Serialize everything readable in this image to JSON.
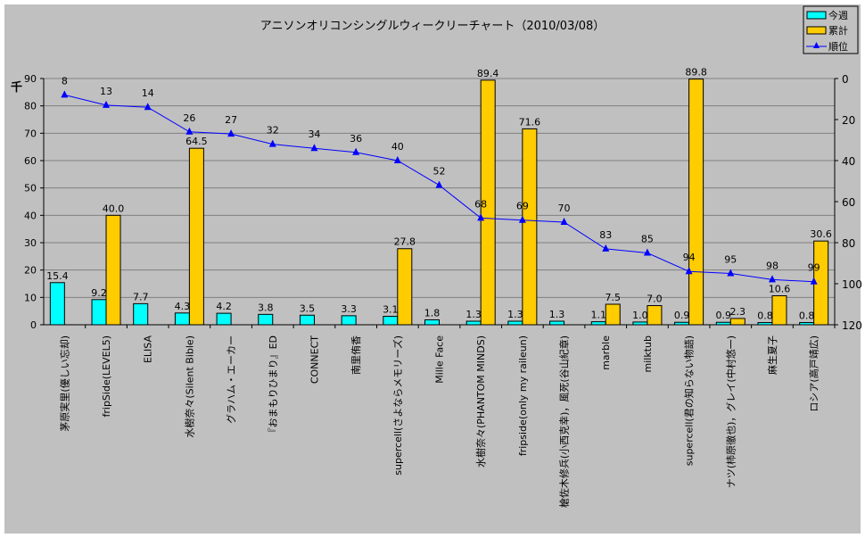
{
  "chart_data": {
    "type": "bar",
    "title": "アニソンオリコンシングルウィークリーチャート（2010/03/08）",
    "ylabel": "千",
    "ylim": [
      0,
      90
    ],
    "y_ticks": [
      0,
      10,
      20,
      30,
      40,
      50,
      60,
      70,
      80,
      90
    ],
    "y2lim": [
      0,
      120
    ],
    "y2_reversed": true,
    "y2_ticks": [
      0,
      20,
      40,
      60,
      80,
      100,
      120
    ],
    "grid": true,
    "legend_placement": "top-right",
    "categories": [
      "茅原実里(優しい忘却)",
      "fripSide(LEVEL5)",
      "ELISA",
      "水樹奈々(Silent Bible)",
      "グラハム・エーカー",
      "『おまもりひまり』ED",
      "CONNECT",
      "南里侑香",
      "supercell(さよならメモリーズ)",
      "Mille Face",
      "水樹奈々(PHANTOM MINDS)",
      "fripside(only my raileun)",
      "槍佐木修兵(小西克幸)，風死(谷山紀章)",
      "marble",
      "milktub",
      "supercell(君の知らない物語)",
      "ナツ(柿原徹也)，グレイ(中村悠一)",
      "麻生夏子",
      "ロシア(高戸靖広)"
    ],
    "series": [
      {
        "name": "今週",
        "type": "bar",
        "axis": "left",
        "color": "#00ffff",
        "values": [
          15.4,
          9.2,
          7.7,
          4.3,
          4.2,
          3.8,
          3.5,
          3.3,
          3.1,
          1.8,
          1.3,
          1.3,
          1.3,
          1.1,
          1.0,
          0.9,
          0.9,
          0.8,
          0.8
        ]
      },
      {
        "name": "累計",
        "type": "bar",
        "axis": "left",
        "color": "#ffcc00",
        "values": [
          null,
          40.0,
          null,
          64.5,
          null,
          null,
          null,
          null,
          27.8,
          null,
          89.4,
          71.6,
          null,
          7.5,
          7.0,
          89.8,
          2.3,
          10.6,
          30.6
        ]
      },
      {
        "name": "順位",
        "type": "line",
        "axis": "right",
        "color": "#0000ff",
        "marker": "triangle",
        "values": [
          8,
          13,
          14,
          26,
          27,
          32,
          34,
          36,
          40,
          52,
          68,
          69,
          70,
          83,
          85,
          94,
          95,
          98,
          99
        ]
      }
    ]
  }
}
